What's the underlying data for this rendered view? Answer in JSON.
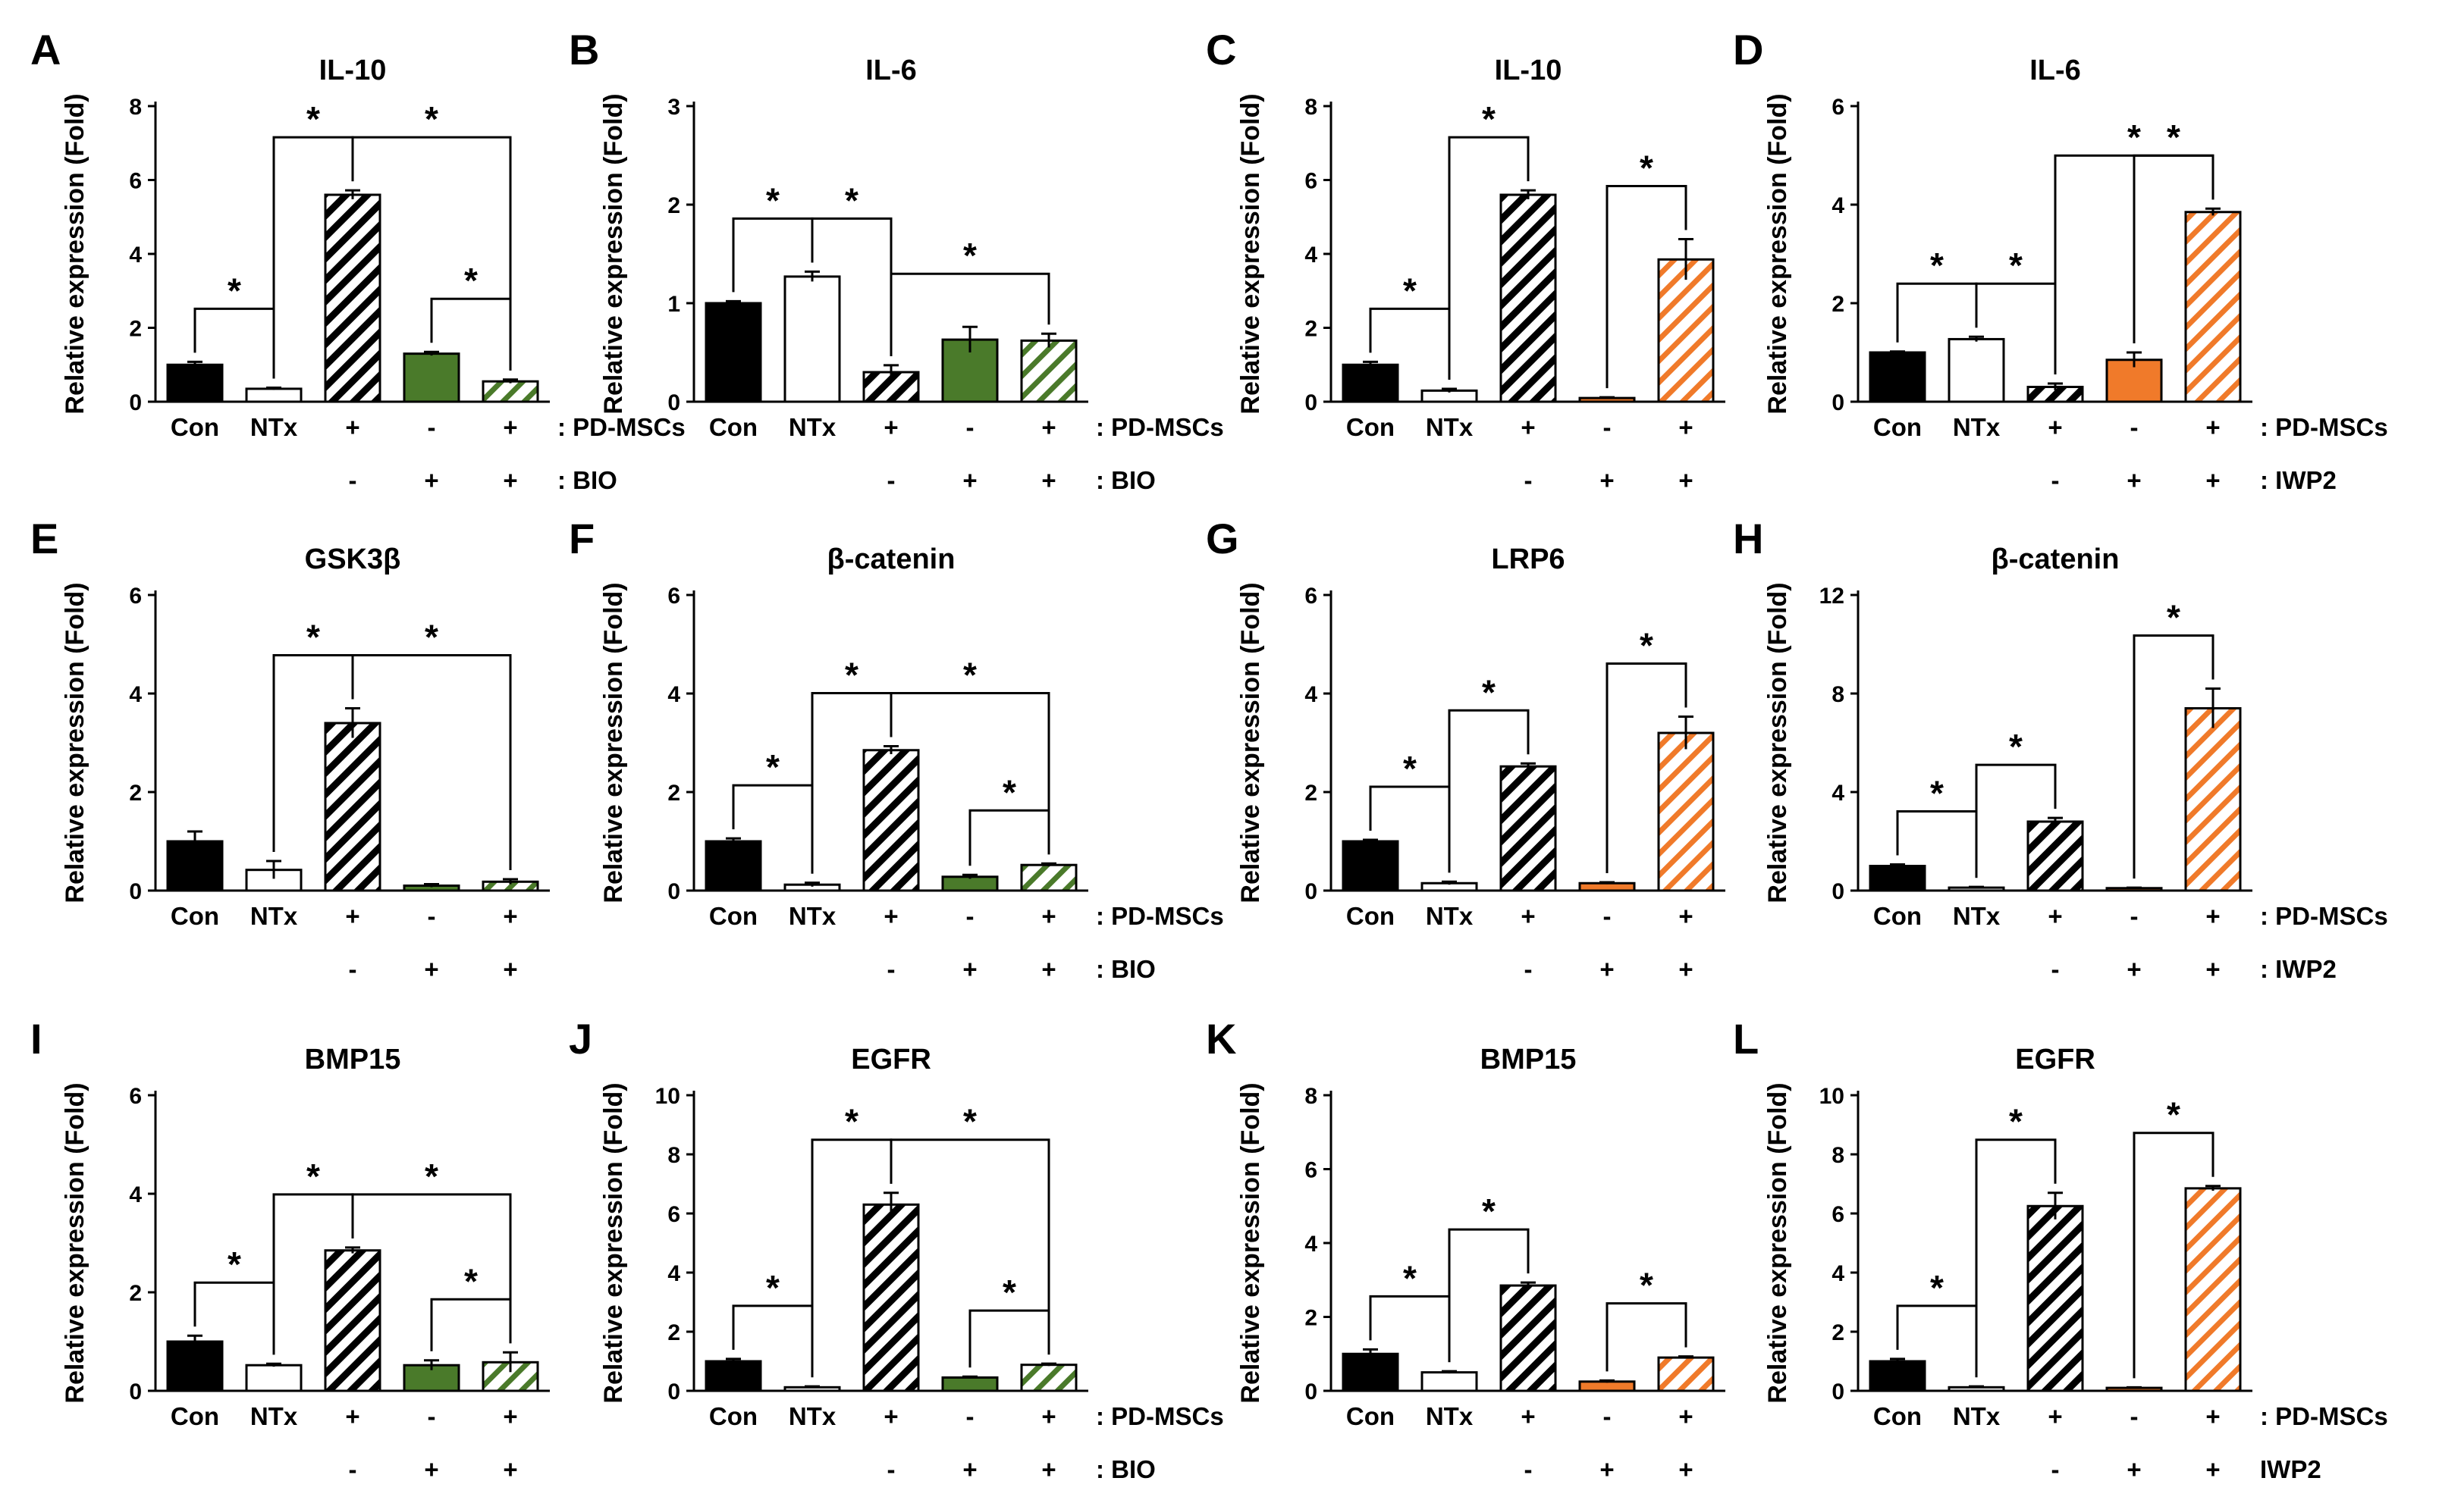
{
  "figure": {
    "group_labels": [
      "Con",
      "NTx"
    ],
    "row_sign_plus": "+",
    "row_sign_minus": "-"
  },
  "colors": {
    "black": "#000000",
    "green": "#4a7a2a",
    "orange": "#f07a2a",
    "error_bar": "#000000"
  },
  "chart_data": [
    {
      "label": "A",
      "title": "IL-10",
      "type": "bar",
      "categories": [
        "Con",
        "NTx",
        "+",
        "-",
        "+"
      ],
      "values": [
        1.0,
        0.35,
        5.6,
        1.3,
        0.55
      ],
      "errors": [
        0.08,
        0.03,
        0.12,
        0.05,
        0.05
      ],
      "styles": [
        "solid-black",
        "white",
        "hatch-black",
        "solid-green",
        "hatch-green"
      ],
      "ylim": [
        0,
        8
      ],
      "yticks": [
        "0",
        "2",
        "4",
        "6",
        "8"
      ],
      "ylabel": "Relative expression (Fold)",
      "rows": [
        {
          "signs": [
            "",
            "",
            "+",
            "-",
            "+"
          ],
          "label": ": PD-MSCs"
        },
        {
          "signs": [
            "",
            "",
            "-",
            "+",
            "+"
          ],
          "label": ": BIO"
        }
      ],
      "sig": [
        {
          "bars": [
            0,
            1
          ],
          "text": "*"
        },
        {
          "bars": [
            1,
            2
          ],
          "text": "*"
        },
        {
          "bars": [
            2,
            4
          ],
          "text": "*"
        },
        {
          "bars": [
            3,
            4
          ],
          "text": "*"
        }
      ]
    },
    {
      "label": "B",
      "title": "IL-6",
      "type": "bar",
      "categories": [
        "Con",
        "NTx",
        "+",
        "-",
        "+"
      ],
      "values": [
        1.0,
        1.27,
        0.3,
        0.63,
        0.62
      ],
      "errors": [
        0.02,
        0.05,
        0.07,
        0.13,
        0.07
      ],
      "styles": [
        "solid-black",
        "white",
        "hatch-black",
        "solid-green",
        "hatch-green"
      ],
      "ylim": [
        0,
        3
      ],
      "yticks": [
        "0",
        "1",
        "2",
        "3"
      ],
      "ylabel": "Relative expression (Fold)",
      "rows": [
        {
          "signs": [
            "",
            "",
            "+",
            "-",
            "+"
          ],
          "label": ": PD-MSCs"
        },
        {
          "signs": [
            "",
            "",
            "-",
            "+",
            "+"
          ],
          "label": ": BIO"
        }
      ],
      "sig": [
        {
          "bars": [
            0,
            1
          ],
          "text": "*"
        },
        {
          "bars": [
            1,
            2
          ],
          "text": "*"
        },
        {
          "bars": [
            2,
            4
          ],
          "text": "*"
        }
      ]
    },
    {
      "label": "C",
      "title": "IL-10",
      "type": "bar",
      "categories": [
        "Con",
        "NTx",
        "+",
        "-",
        "+"
      ],
      "values": [
        1.0,
        0.3,
        5.6,
        0.1,
        3.85
      ],
      "errors": [
        0.08,
        0.05,
        0.12,
        0.02,
        0.55
      ],
      "styles": [
        "solid-black",
        "white",
        "hatch-black",
        "solid-orange",
        "hatch-orange"
      ],
      "ylim": [
        0,
        8
      ],
      "yticks": [
        "0",
        "2",
        "4",
        "6",
        "8"
      ],
      "ylabel": "Relative expression (Fold)",
      "rows": [
        {
          "signs": [
            "",
            "",
            "+",
            "-",
            "+"
          ],
          "label": ""
        },
        {
          "signs": [
            "",
            "",
            "-",
            "+",
            "+"
          ],
          "label": ""
        }
      ],
      "sig": [
        {
          "bars": [
            0,
            1
          ],
          "text": "*"
        },
        {
          "bars": [
            1,
            2
          ],
          "text": "*"
        },
        {
          "bars": [
            3,
            4
          ],
          "text": "*"
        }
      ]
    },
    {
      "label": "D",
      "title": "IL-6",
      "type": "bar",
      "categories": [
        "Con",
        "NTx",
        "+",
        "-",
        "+"
      ],
      "values": [
        1.0,
        1.27,
        0.3,
        0.85,
        3.85
      ],
      "errors": [
        0.02,
        0.05,
        0.07,
        0.15,
        0.07
      ],
      "styles": [
        "solid-black",
        "white",
        "hatch-black",
        "solid-orange",
        "hatch-orange"
      ],
      "ylim": [
        0,
        6
      ],
      "yticks": [
        "0",
        "2",
        "4",
        "6"
      ],
      "ylabel": "Relative expression (Fold)",
      "rows": [
        {
          "signs": [
            "",
            "",
            "+",
            "-",
            "+"
          ],
          "label": ": PD-MSCs"
        },
        {
          "signs": [
            "",
            "",
            "-",
            "+",
            "+"
          ],
          "label": ": IWP2"
        }
      ],
      "sig": [
        {
          "bars": [
            0,
            1
          ],
          "text": "*"
        },
        {
          "bars": [
            1,
            2
          ],
          "text": "*"
        },
        {
          "bars": [
            3,
            4
          ],
          "text": "*"
        },
        {
          "bars": [
            2,
            4
          ],
          "text": "*"
        }
      ]
    },
    {
      "label": "E",
      "title": "GSK3β",
      "type": "bar",
      "categories": [
        "Con",
        "NTx",
        "+",
        "-",
        "+"
      ],
      "values": [
        1.0,
        0.42,
        3.4,
        0.1,
        0.18
      ],
      "errors": [
        0.2,
        0.18,
        0.3,
        0.03,
        0.05
      ],
      "styles": [
        "solid-black",
        "white",
        "hatch-black",
        "solid-green",
        "hatch-green"
      ],
      "ylim": [
        0,
        6
      ],
      "yticks": [
        "0",
        "2",
        "4",
        "6"
      ],
      "ylabel": "Relative expression (Fold)",
      "rows": [
        {
          "signs": [
            "",
            "",
            "+",
            "-",
            "+"
          ],
          "label": ""
        },
        {
          "signs": [
            "",
            "",
            "-",
            "+",
            "+"
          ],
          "label": ""
        }
      ],
      "sig": [
        {
          "bars": [
            1,
            2
          ],
          "text": "*"
        },
        {
          "bars": [
            2,
            4
          ],
          "text": "*"
        }
      ]
    },
    {
      "label": "F",
      "title": "β-catenin",
      "type": "bar",
      "categories": [
        "Con",
        "NTx",
        "+",
        "-",
        "+"
      ],
      "values": [
        1.0,
        0.12,
        2.85,
        0.28,
        0.52
      ],
      "errors": [
        0.06,
        0.04,
        0.08,
        0.04,
        0.03
      ],
      "styles": [
        "solid-black",
        "white",
        "hatch-black",
        "solid-green",
        "hatch-green"
      ],
      "ylim": [
        0,
        6
      ],
      "yticks": [
        "0",
        "2",
        "4",
        "6"
      ],
      "ylabel": "Relative expression (Fold)",
      "rows": [
        {
          "signs": [
            "",
            "",
            "+",
            "-",
            "+"
          ],
          "label": ": PD-MSCs"
        },
        {
          "signs": [
            "",
            "",
            "-",
            "+",
            "+"
          ],
          "label": ": BIO"
        }
      ],
      "sig": [
        {
          "bars": [
            0,
            1
          ],
          "text": "*"
        },
        {
          "bars": [
            1,
            2
          ],
          "text": "*"
        },
        {
          "bars": [
            2,
            4
          ],
          "text": "*"
        },
        {
          "bars": [
            3,
            4
          ],
          "text": "*"
        }
      ]
    },
    {
      "label": "G",
      "title": "LRP6",
      "type": "bar",
      "categories": [
        "Con",
        "NTx",
        "+",
        "-",
        "+"
      ],
      "values": [
        1.0,
        0.15,
        2.52,
        0.15,
        3.2
      ],
      "errors": [
        0.03,
        0.03,
        0.06,
        0.02,
        0.33
      ],
      "styles": [
        "solid-black",
        "white",
        "hatch-black",
        "solid-orange",
        "hatch-orange"
      ],
      "ylim": [
        0,
        6
      ],
      "yticks": [
        "0",
        "2",
        "4",
        "6"
      ],
      "ylabel": "Relative expression (Fold)",
      "rows": [
        {
          "signs": [
            "",
            "",
            "+",
            "-",
            "+"
          ],
          "label": ""
        },
        {
          "signs": [
            "",
            "",
            "-",
            "+",
            "+"
          ],
          "label": ""
        }
      ],
      "sig": [
        {
          "bars": [
            0,
            1
          ],
          "text": "*"
        },
        {
          "bars": [
            1,
            2
          ],
          "text": "*"
        },
        {
          "bars": [
            3,
            4
          ],
          "text": "*"
        }
      ]
    },
    {
      "label": "H",
      "title": "β-catenin",
      "type": "bar",
      "categories": [
        "Con",
        "NTx",
        "+",
        "-",
        "+"
      ],
      "values": [
        1.0,
        0.12,
        2.8,
        0.1,
        7.4
      ],
      "errors": [
        0.06,
        0.03,
        0.15,
        0.02,
        0.8
      ],
      "styles": [
        "solid-black",
        "white",
        "hatch-black",
        "solid-orange",
        "hatch-orange"
      ],
      "ylim": [
        0,
        12
      ],
      "yticks": [
        "0",
        "4",
        "8",
        "12"
      ],
      "ylabel": "Relative expression (Fold)",
      "rows": [
        {
          "signs": [
            "",
            "",
            "+",
            "-",
            "+"
          ],
          "label": ": PD-MSCs"
        },
        {
          "signs": [
            "",
            "",
            "-",
            "+",
            "+"
          ],
          "label": ": IWP2"
        }
      ],
      "sig": [
        {
          "bars": [
            0,
            1
          ],
          "text": "*"
        },
        {
          "bars": [
            1,
            2
          ],
          "text": "*"
        },
        {
          "bars": [
            3,
            4
          ],
          "text": "*"
        }
      ]
    },
    {
      "label": "I",
      "title": "BMP15",
      "type": "bar",
      "categories": [
        "Con",
        "NTx",
        "+",
        "-",
        "+"
      ],
      "values": [
        1.0,
        0.52,
        2.85,
        0.52,
        0.58
      ],
      "errors": [
        0.12,
        0.03,
        0.06,
        0.1,
        0.2
      ],
      "styles": [
        "solid-black",
        "white",
        "hatch-black",
        "solid-green",
        "hatch-green"
      ],
      "ylim": [
        0,
        6
      ],
      "yticks": [
        "0",
        "2",
        "4",
        "6"
      ],
      "ylabel": "Relative expression (Fold)",
      "rows": [
        {
          "signs": [
            "",
            "",
            "+",
            "-",
            "+"
          ],
          "label": ""
        },
        {
          "signs": [
            "",
            "",
            "-",
            "+",
            "+"
          ],
          "label": ""
        }
      ],
      "sig": [
        {
          "bars": [
            0,
            1
          ],
          "text": "*"
        },
        {
          "bars": [
            1,
            2
          ],
          "text": "*"
        },
        {
          "bars": [
            2,
            4
          ],
          "text": "*"
        },
        {
          "bars": [
            3,
            4
          ],
          "text": "*"
        }
      ]
    },
    {
      "label": "J",
      "title": "EGFR",
      "type": "bar",
      "categories": [
        "Con",
        "NTx",
        "+",
        "-",
        "+"
      ],
      "values": [
        1.0,
        0.12,
        6.3,
        0.45,
        0.88
      ],
      "errors": [
        0.08,
        0.03,
        0.4,
        0.03,
        0.04
      ],
      "styles": [
        "solid-black",
        "white",
        "hatch-black",
        "solid-green",
        "hatch-green"
      ],
      "ylim": [
        0,
        10
      ],
      "yticks": [
        "0",
        "2",
        "4",
        "6",
        "8",
        "10"
      ],
      "ylabel": "Relative expression (Fold)",
      "rows": [
        {
          "signs": [
            "",
            "",
            "+",
            "-",
            "+"
          ],
          "label": ": PD-MSCs"
        },
        {
          "signs": [
            "",
            "",
            "-",
            "+",
            "+"
          ],
          "label": ": BIO"
        }
      ],
      "sig": [
        {
          "bars": [
            0,
            1
          ],
          "text": "*"
        },
        {
          "bars": [
            1,
            2
          ],
          "text": "*"
        },
        {
          "bars": [
            2,
            4
          ],
          "text": "*"
        },
        {
          "bars": [
            3,
            4
          ],
          "text": "*"
        }
      ]
    },
    {
      "label": "K",
      "title": "BMP15",
      "type": "bar",
      "categories": [
        "Con",
        "NTx",
        "+",
        "-",
        "+"
      ],
      "values": [
        1.0,
        0.5,
        2.85,
        0.25,
        0.9
      ],
      "errors": [
        0.12,
        0.03,
        0.08,
        0.03,
        0.03
      ],
      "styles": [
        "solid-black",
        "white",
        "hatch-black",
        "solid-orange",
        "hatch-orange"
      ],
      "ylim": [
        0,
        8
      ],
      "yticks": [
        "0",
        "2",
        "4",
        "6",
        "8"
      ],
      "ylabel": "Relative expression (Fold)",
      "rows": [
        {
          "signs": [
            "",
            "",
            "+",
            "-",
            "+"
          ],
          "label": ""
        },
        {
          "signs": [
            "",
            "",
            "-",
            "+",
            "+"
          ],
          "label": ""
        }
      ],
      "sig": [
        {
          "bars": [
            0,
            1
          ],
          "text": "*"
        },
        {
          "bars": [
            1,
            2
          ],
          "text": "*"
        },
        {
          "bars": [
            3,
            4
          ],
          "text": "*"
        }
      ]
    },
    {
      "label": "L",
      "title": "EGFR",
      "type": "bar",
      "categories": [
        "Con",
        "NTx",
        "+",
        "-",
        "+"
      ],
      "values": [
        1.0,
        0.12,
        6.25,
        0.1,
        6.85
      ],
      "errors": [
        0.08,
        0.03,
        0.45,
        0.02,
        0.08
      ],
      "styles": [
        "solid-black",
        "white",
        "hatch-black",
        "solid-orange",
        "hatch-orange"
      ],
      "ylim": [
        0,
        10
      ],
      "yticks": [
        "0",
        "2",
        "4",
        "6",
        "8",
        "10"
      ],
      "ylabel": "Relative expression (Fold)",
      "rows": [
        {
          "signs": [
            "",
            "",
            "+",
            "-",
            "+"
          ],
          "label": ": PD-MSCs"
        },
        {
          "signs": [
            "",
            "",
            "-",
            "+",
            "+"
          ],
          "label": "IWP2"
        }
      ],
      "sig": [
        {
          "bars": [
            0,
            1
          ],
          "text": "*"
        },
        {
          "bars": [
            1,
            2
          ],
          "text": "*"
        },
        {
          "bars": [
            3,
            4
          ],
          "text": "*"
        }
      ]
    }
  ]
}
